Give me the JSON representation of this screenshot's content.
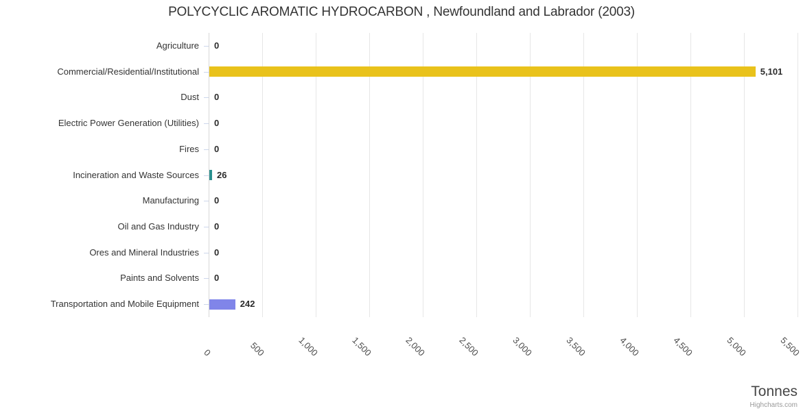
{
  "title": "POLYCYCLIC AROMATIC HYDROCARBON , Newfoundland and Labrador (2003)",
  "axis_title": "Tonnes",
  "credits": "Highcharts.com",
  "colors": {
    "grid": "#e6e6e6",
    "axis_line": "#d6d6d6",
    "tick": "#ccd6eb",
    "category_label": "#333333",
    "value_label": "#2b2b2b",
    "x_label": "#4d4d4d"
  },
  "chart_data": {
    "type": "bar",
    "title": "POLYCYCLIC AROMATIC HYDROCARBON , Newfoundland and Labrador (2003)",
    "xlabel": "Tonnes",
    "ylabel": "",
    "xlim": [
      0,
      5500
    ],
    "grid": true,
    "legend": false,
    "categories": [
      "Agriculture",
      "Commercial/Residential/Institutional",
      "Dust",
      "Electric Power Generation (Utilities)",
      "Fires",
      "Incineration and Waste Sources",
      "Manufacturing",
      "Oil and Gas Industry",
      "Ores and Mineral Industries",
      "Paints and Solvents",
      "Transportation and Mobile Equipment"
    ],
    "values": [
      0,
      5101,
      0,
      0,
      0,
      26,
      0,
      0,
      0,
      0,
      242
    ],
    "value_labels": [
      "0",
      "5,101",
      "0",
      "0",
      "0",
      "26",
      "0",
      "0",
      "0",
      "0",
      "242"
    ],
    "bar_colors": [
      null,
      "#e9c21b",
      null,
      null,
      null,
      "#2b908f",
      null,
      null,
      null,
      null,
      "#8085e9"
    ],
    "x_ticks": [
      0,
      500,
      1000,
      1500,
      2000,
      2500,
      3000,
      3500,
      4000,
      4500,
      5000,
      5500
    ],
    "x_tick_labels": [
      "0",
      "500",
      "1,000",
      "1,500",
      "2,000",
      "2,500",
      "3,000",
      "3,500",
      "4,000",
      "4,500",
      "5,000",
      "5,500"
    ]
  }
}
